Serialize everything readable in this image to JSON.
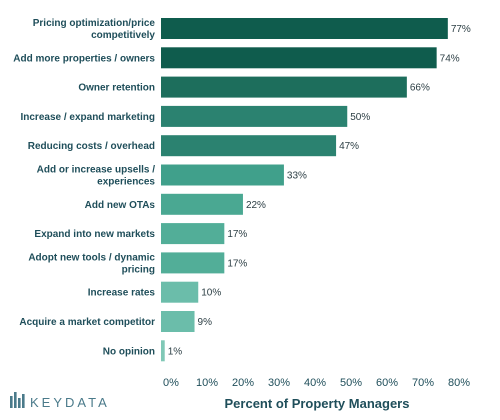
{
  "chart_data": {
    "type": "bar",
    "orientation": "horizontal",
    "categories": [
      [
        "Pricing optimization/price",
        "competitively"
      ],
      [
        "Add more properties / owners"
      ],
      [
        "Owner retention"
      ],
      [
        "Increase / expand marketing"
      ],
      [
        "Reducing costs / overhead"
      ],
      [
        "Add or increase upsells /",
        "experiences"
      ],
      [
        "Add new OTAs"
      ],
      [
        "Expand into new markets"
      ],
      [
        "Adopt new tools / dynamic",
        "pricing"
      ],
      [
        "Increase rates"
      ],
      [
        "Acquire a market competitor"
      ],
      [
        "No opinion"
      ]
    ],
    "values": [
      77,
      74,
      66,
      50,
      47,
      33,
      22,
      17,
      17,
      10,
      9,
      1
    ],
    "value_labels": [
      "77%",
      "74%",
      "66%",
      "50%",
      "47%",
      "33%",
      "22%",
      "17%",
      "17%",
      "10%",
      "9%",
      "1%"
    ],
    "xlabel": "Percent of Property Managers",
    "xlim": [
      0,
      80
    ],
    "xticks": [
      "0%",
      "10%",
      "20%",
      "30%",
      "40%",
      "50%",
      "60%",
      "70%",
      "80%"
    ],
    "bar_colors": [
      "#0f5c4d",
      "#0f5c4d",
      "#1d6e5c",
      "#2b8270",
      "#2b8270",
      "#40a08b",
      "#4aa892",
      "#52ae98",
      "#52ae98",
      "#6bbdaa",
      "#6bbdaa",
      "#80c8b6"
    ],
    "grid": false,
    "legend": "none"
  },
  "logo": {
    "text": "KEYDATA",
    "mark": "bar-chart-icon"
  }
}
